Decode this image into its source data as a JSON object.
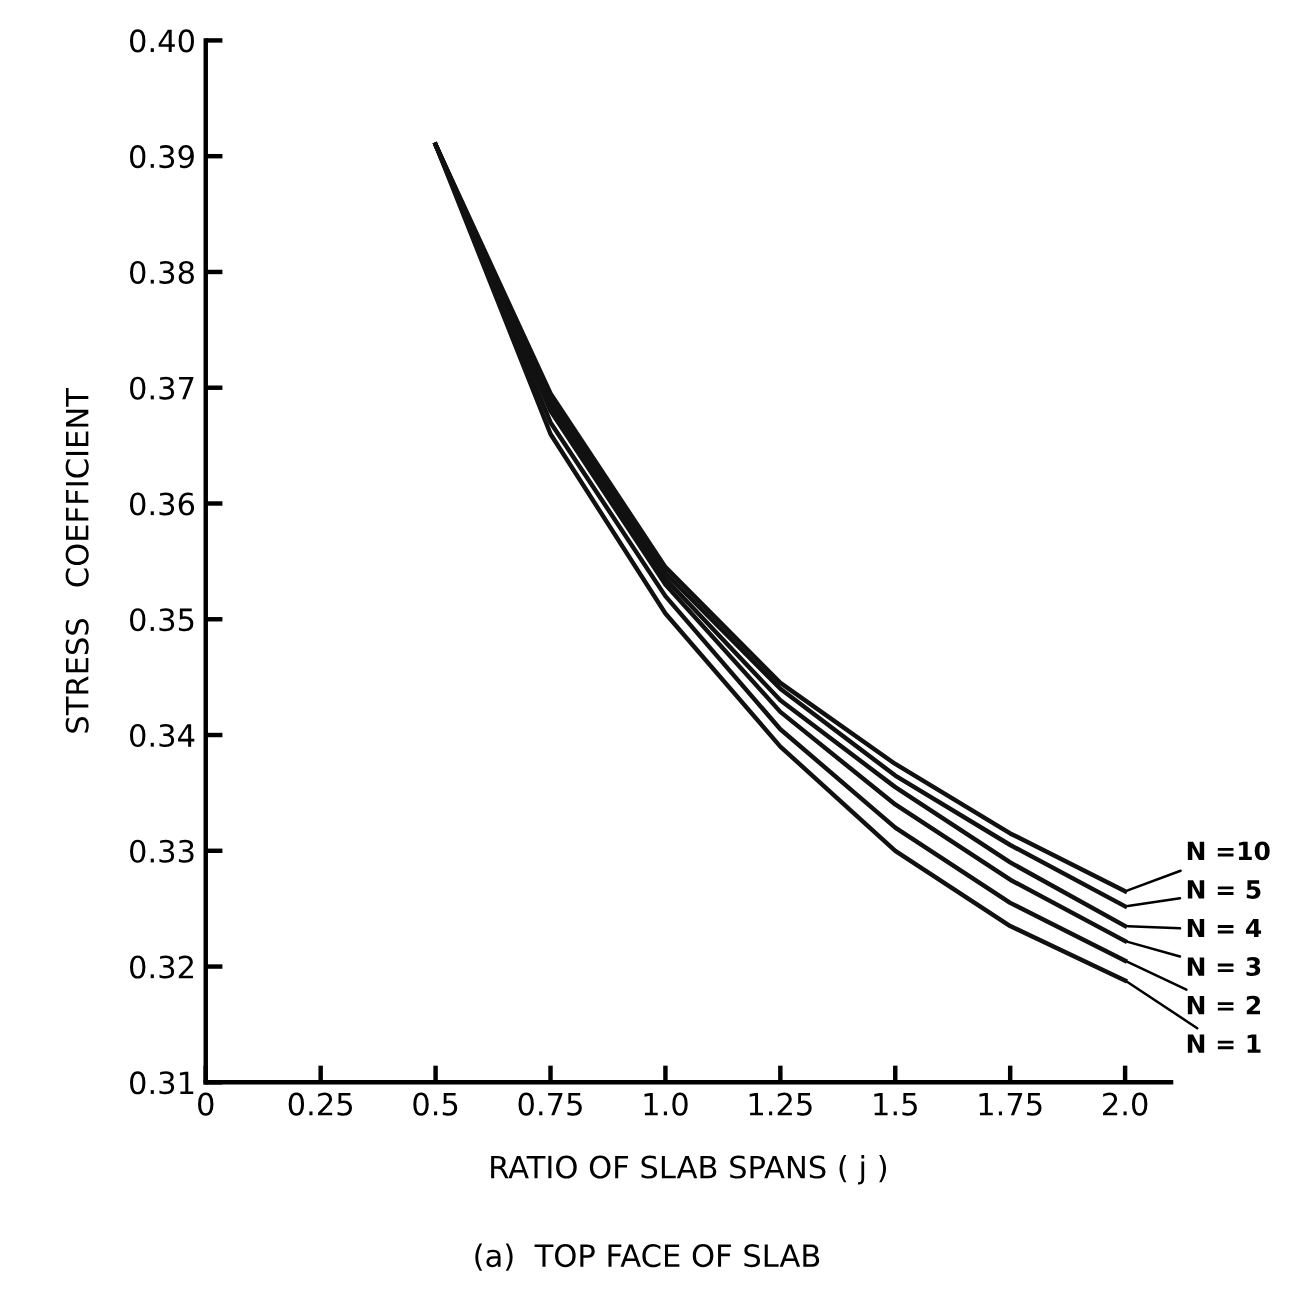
{
  "chart_data": {
    "type": "line",
    "xlabel": "RATIO OF SLAB SPANS ( j )",
    "ylabel": "STRESS   COEFFICIENT",
    "annotations": [
      "(a)  TOP FACE OF SLAB"
    ],
    "x": [
      0.5,
      0.75,
      1.0,
      1.25,
      1.5,
      1.75,
      2.0
    ],
    "series": [
      {
        "name": "N =10",
        "color": "#111111",
        "values": [
          0.391,
          0.3695,
          0.3545,
          0.3445,
          0.3375,
          0.3315,
          0.3265
        ]
      },
      {
        "name": "N = 5",
        "color": "#111111",
        "values": [
          0.391,
          0.369,
          0.354,
          0.344,
          0.3365,
          0.3305,
          0.3252
        ]
      },
      {
        "name": "N = 4",
        "color": "#111111",
        "values": [
          0.391,
          0.3685,
          0.3535,
          0.343,
          0.3355,
          0.329,
          0.3235
        ]
      },
      {
        "name": "N = 3",
        "color": "#111111",
        "values": [
          0.391,
          0.368,
          0.353,
          0.342,
          0.334,
          0.3275,
          0.3222
        ]
      },
      {
        "name": "N = 2",
        "color": "#111111",
        "values": [
          0.391,
          0.367,
          0.352,
          0.3405,
          0.332,
          0.3255,
          0.3205
        ]
      },
      {
        "name": "N = 1",
        "color": "#111111",
        "values": [
          0.391,
          0.366,
          0.3505,
          0.339,
          0.33,
          0.3235,
          0.3188
        ]
      }
    ],
    "xlim": [
      0,
      2.1
    ],
    "ylim": [
      0.31,
      0.4
    ],
    "xticks": [
      0,
      0.25,
      0.5,
      0.75,
      {
        "value": 1.0,
        "label": "1.0"
      },
      1.25,
      1.5,
      1.75,
      {
        "value": 2.0,
        "label": "2.0"
      }
    ],
    "yticks": [
      {
        "value": 0.31,
        "label": "0.31"
      },
      {
        "value": 0.32,
        "label": "0.32"
      },
      {
        "value": 0.33,
        "label": "0.33"
      },
      {
        "value": 0.34,
        "label": "0.34"
      },
      {
        "value": 0.35,
        "label": "0.35"
      },
      {
        "value": 0.36,
        "label": "0.36"
      },
      {
        "value": 0.37,
        "label": "0.37"
      },
      {
        "value": 0.38,
        "label": "0.38"
      },
      {
        "value": 0.39,
        "label": "0.39"
      },
      {
        "value": 0.4,
        "label": "0.40"
      }
    ],
    "grid": false,
    "legend": false,
    "marker": "none",
    "line_style": "solid"
  }
}
